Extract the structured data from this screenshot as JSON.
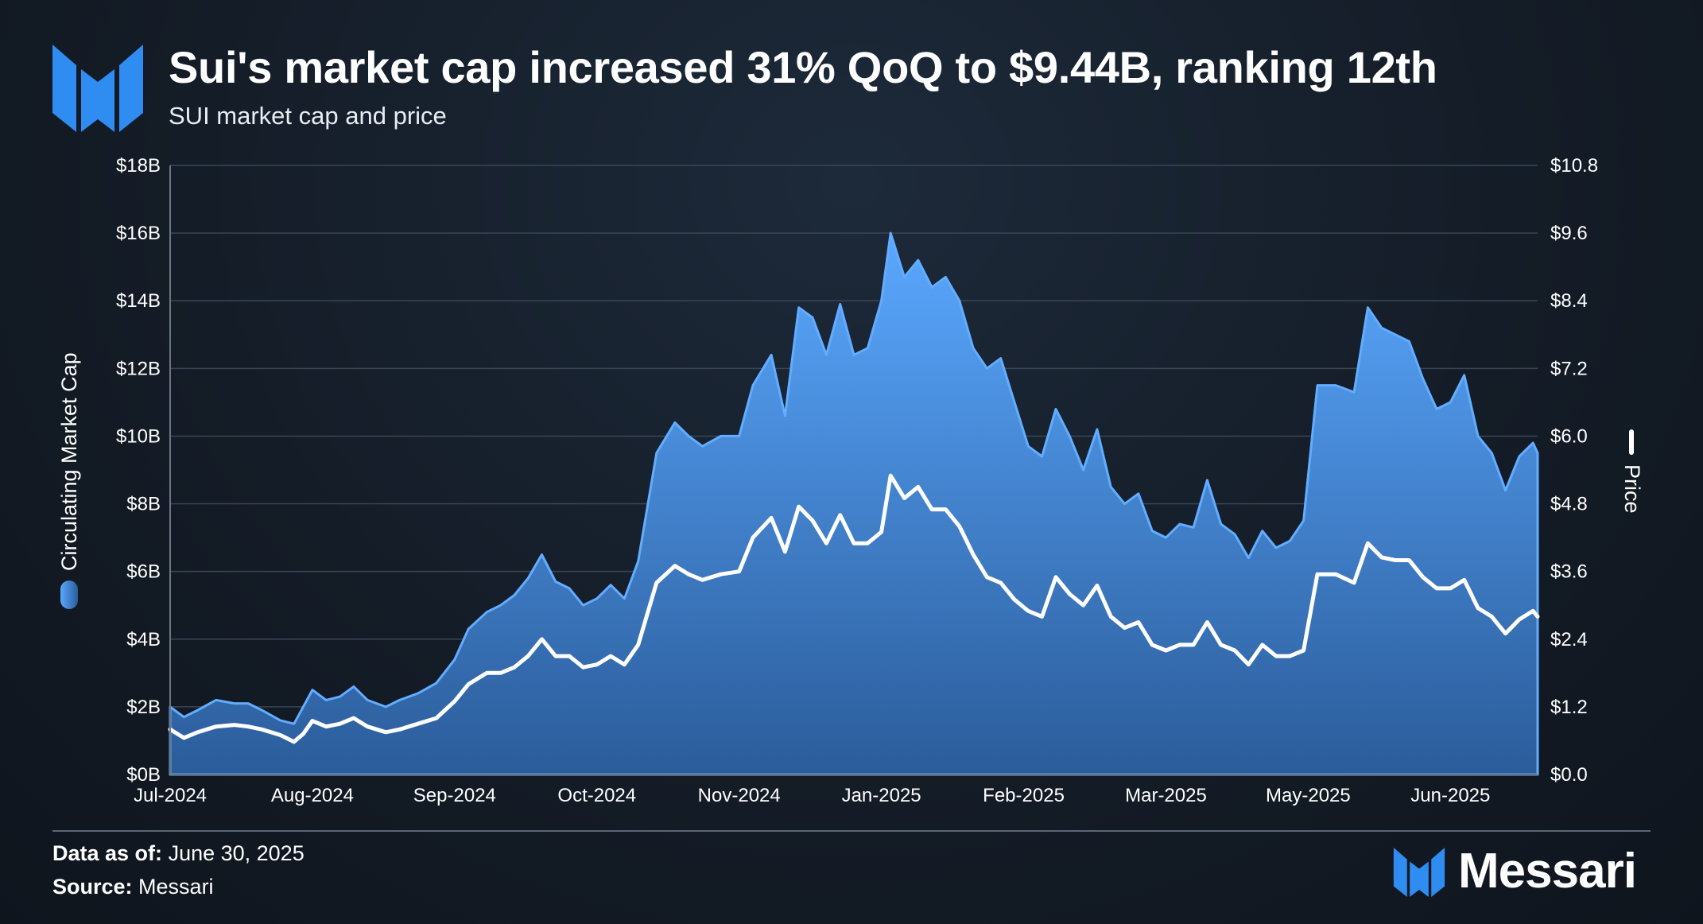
{
  "header": {
    "title": "Sui's market cap increased 31% QoQ to $9.44B, ranking 12th",
    "subtitle": "SUI market cap and price"
  },
  "brand": {
    "name": "Messari",
    "logo_icon": "messari-m-icon",
    "color": "#2f8cf0"
  },
  "footer": {
    "date_label": "Data as of:",
    "date_value": "June 30, 2025",
    "source_label": "Source:",
    "source_value": "Messari"
  },
  "colors": {
    "area_top": "#59a6ff",
    "area_bottom": "#2c5f9e",
    "price_line": "#ffffff",
    "grid": "#3a4656"
  },
  "chart_data": {
    "type": "area",
    "title": "Sui's market cap increased 31% QoQ to $9.44B, ranking 12th",
    "subtitle": "SUI market cap and price",
    "x_tick_labels": [
      "Jul-2024",
      "Aug-2024",
      "Sep-2024",
      "Oct-2024",
      "Nov-2024",
      "Jan-2025",
      "Feb-2025",
      "Mar-2025",
      "May-2025",
      "Jun-2025"
    ],
    "x_tick_days": [
      0,
      31,
      62,
      93,
      124,
      155,
      186,
      217,
      248,
      279
    ],
    "x_range_days": [
      0,
      298
    ],
    "y_left": {
      "label": "Circulating Market Cap",
      "unit": "USD billions",
      "range": [
        0,
        18
      ],
      "tick_labels": [
        "$0B",
        "$2B",
        "$4B",
        "$6B",
        "$8B",
        "$10B",
        "$12B",
        "$14B",
        "$16B",
        "$18B"
      ]
    },
    "y_right": {
      "label": "Price",
      "unit": "USD",
      "range": [
        0,
        10.8
      ],
      "tick_labels": [
        "$0.0",
        "$1.2",
        "$2.4",
        "$3.6",
        "$4.8",
        "$6.0",
        "$7.2",
        "$8.4",
        "$9.6",
        "$10.8"
      ]
    },
    "legend": [
      {
        "name": "Circulating Market Cap",
        "style": "area",
        "position": "left-vertical"
      },
      {
        "name": "Price",
        "style": "line",
        "position": "right-vertical"
      }
    ],
    "series": [
      {
        "name": "Circulating Market Cap",
        "axis": "left",
        "points": [
          [
            0,
            2.0
          ],
          [
            3,
            1.7
          ],
          [
            6,
            1.9
          ],
          [
            10,
            2.2
          ],
          [
            14,
            2.1
          ],
          [
            17,
            2.1
          ],
          [
            20,
            1.9
          ],
          [
            24,
            1.6
          ],
          [
            27,
            1.5
          ],
          [
            29,
            2.0
          ],
          [
            31,
            2.5
          ],
          [
            34,
            2.2
          ],
          [
            37,
            2.3
          ],
          [
            40,
            2.6
          ],
          [
            43,
            2.2
          ],
          [
            47,
            2.0
          ],
          [
            50,
            2.2
          ],
          [
            54,
            2.4
          ],
          [
            58,
            2.7
          ],
          [
            62,
            3.4
          ],
          [
            65,
            4.3
          ],
          [
            69,
            4.8
          ],
          [
            72,
            5.0
          ],
          [
            75,
            5.3
          ],
          [
            78,
            5.8
          ],
          [
            81,
            6.5
          ],
          [
            84,
            5.7
          ],
          [
            87,
            5.5
          ],
          [
            90,
            5.0
          ],
          [
            93,
            5.2
          ],
          [
            96,
            5.6
          ],
          [
            99,
            5.2
          ],
          [
            102,
            6.3
          ],
          [
            106,
            9.5
          ],
          [
            110,
            10.4
          ],
          [
            113,
            10.0
          ],
          [
            116,
            9.7
          ],
          [
            120,
            10.0
          ],
          [
            124,
            10.0
          ],
          [
            127,
            11.5
          ],
          [
            131,
            12.4
          ],
          [
            134,
            10.6
          ],
          [
            137,
            13.8
          ],
          [
            140,
            13.5
          ],
          [
            143,
            12.4
          ],
          [
            146,
            13.9
          ],
          [
            149,
            12.4
          ],
          [
            152,
            12.6
          ],
          [
            155,
            14.0
          ],
          [
            157,
            16.0
          ],
          [
            160,
            14.7
          ],
          [
            163,
            15.2
          ],
          [
            166,
            14.4
          ],
          [
            169,
            14.7
          ],
          [
            172,
            14.0
          ],
          [
            175,
            12.6
          ],
          [
            178,
            12.0
          ],
          [
            181,
            12.3
          ],
          [
            184,
            11.0
          ],
          [
            187,
            9.7
          ],
          [
            190,
            9.4
          ],
          [
            193,
            10.8
          ],
          [
            196,
            10.0
          ],
          [
            199,
            9.0
          ],
          [
            202,
            10.2
          ],
          [
            205,
            8.5
          ],
          [
            208,
            8.0
          ],
          [
            211,
            8.3
          ],
          [
            214,
            7.2
          ],
          [
            217,
            7.0
          ],
          [
            220,
            7.4
          ],
          [
            223,
            7.3
          ],
          [
            226,
            8.7
          ],
          [
            229,
            7.4
          ],
          [
            232,
            7.1
          ],
          [
            235,
            6.4
          ],
          [
            238,
            7.2
          ],
          [
            241,
            6.7
          ],
          [
            244,
            6.9
          ],
          [
            247,
            7.5
          ],
          [
            250,
            11.5
          ],
          [
            254,
            11.5
          ],
          [
            258,
            11.3
          ],
          [
            261,
            13.8
          ],
          [
            264,
            13.2
          ],
          [
            267,
            13.0
          ],
          [
            270,
            12.8
          ],
          [
            273,
            11.7
          ],
          [
            276,
            10.8
          ],
          [
            279,
            11.0
          ],
          [
            282,
            11.8
          ],
          [
            285,
            10.0
          ],
          [
            288,
            9.5
          ],
          [
            291,
            8.4
          ],
          [
            294,
            9.4
          ],
          [
            297,
            9.8
          ],
          [
            298,
            9.5
          ]
        ]
      },
      {
        "name": "Price",
        "axis": "right",
        "points": [
          [
            0,
            0.8
          ],
          [
            3,
            0.65
          ],
          [
            6,
            0.75
          ],
          [
            10,
            0.85
          ],
          [
            14,
            0.88
          ],
          [
            17,
            0.85
          ],
          [
            20,
            0.8
          ],
          [
            24,
            0.7
          ],
          [
            27,
            0.58
          ],
          [
            29,
            0.72
          ],
          [
            31,
            0.95
          ],
          [
            34,
            0.85
          ],
          [
            37,
            0.9
          ],
          [
            40,
            1.0
          ],
          [
            43,
            0.85
          ],
          [
            47,
            0.75
          ],
          [
            50,
            0.8
          ],
          [
            54,
            0.9
          ],
          [
            58,
            1.0
          ],
          [
            62,
            1.3
          ],
          [
            65,
            1.6
          ],
          [
            69,
            1.8
          ],
          [
            72,
            1.8
          ],
          [
            75,
            1.9
          ],
          [
            78,
            2.1
          ],
          [
            81,
            2.4
          ],
          [
            84,
            2.1
          ],
          [
            87,
            2.1
          ],
          [
            90,
            1.9
          ],
          [
            93,
            1.95
          ],
          [
            96,
            2.1
          ],
          [
            99,
            1.95
          ],
          [
            102,
            2.3
          ],
          [
            106,
            3.4
          ],
          [
            110,
            3.7
          ],
          [
            113,
            3.55
          ],
          [
            116,
            3.45
          ],
          [
            120,
            3.55
          ],
          [
            124,
            3.6
          ],
          [
            127,
            4.2
          ],
          [
            131,
            4.55
          ],
          [
            134,
            3.95
          ],
          [
            137,
            4.75
          ],
          [
            140,
            4.5
          ],
          [
            143,
            4.1
          ],
          [
            146,
            4.6
          ],
          [
            149,
            4.1
          ],
          [
            152,
            4.1
          ],
          [
            155,
            4.3
          ],
          [
            157,
            5.3
          ],
          [
            160,
            4.9
          ],
          [
            163,
            5.1
          ],
          [
            166,
            4.7
          ],
          [
            169,
            4.7
          ],
          [
            172,
            4.4
          ],
          [
            175,
            3.9
          ],
          [
            178,
            3.5
          ],
          [
            181,
            3.4
          ],
          [
            184,
            3.1
          ],
          [
            187,
            2.9
          ],
          [
            190,
            2.8
          ],
          [
            193,
            3.5
          ],
          [
            196,
            3.2
          ],
          [
            199,
            3.0
          ],
          [
            202,
            3.35
          ],
          [
            205,
            2.8
          ],
          [
            208,
            2.6
          ],
          [
            211,
            2.7
          ],
          [
            214,
            2.3
          ],
          [
            217,
            2.2
          ],
          [
            220,
            2.3
          ],
          [
            223,
            2.3
          ],
          [
            226,
            2.7
          ],
          [
            229,
            2.3
          ],
          [
            232,
            2.2
          ],
          [
            235,
            1.95
          ],
          [
            238,
            2.3
          ],
          [
            241,
            2.1
          ],
          [
            244,
            2.1
          ],
          [
            247,
            2.2
          ],
          [
            250,
            3.55
          ],
          [
            254,
            3.55
          ],
          [
            258,
            3.4
          ],
          [
            261,
            4.1
          ],
          [
            264,
            3.85
          ],
          [
            267,
            3.8
          ],
          [
            270,
            3.8
          ],
          [
            273,
            3.5
          ],
          [
            276,
            3.3
          ],
          [
            279,
            3.3
          ],
          [
            282,
            3.45
          ],
          [
            285,
            2.95
          ],
          [
            288,
            2.8
          ],
          [
            291,
            2.5
          ],
          [
            294,
            2.75
          ],
          [
            297,
            2.9
          ],
          [
            298,
            2.8
          ]
        ]
      }
    ]
  }
}
